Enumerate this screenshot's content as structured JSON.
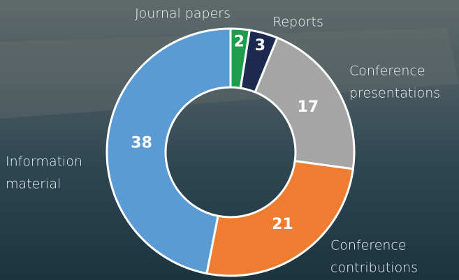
{
  "chart_data": {
    "type": "donut",
    "categories": [
      [
        "Journal papers"
      ],
      [
        "Reports"
      ],
      [
        "Conference",
        "presentations"
      ],
      [
        "Conference",
        "contributions"
      ],
      [
        "Information",
        "material"
      ]
    ],
    "values": [
      2,
      3,
      17,
      21,
      38
    ],
    "colors": [
      "#1f9d4c",
      "#1b2a4e",
      "#a5a5a5",
      "#ee7d32",
      "#5b9bd5"
    ]
  }
}
